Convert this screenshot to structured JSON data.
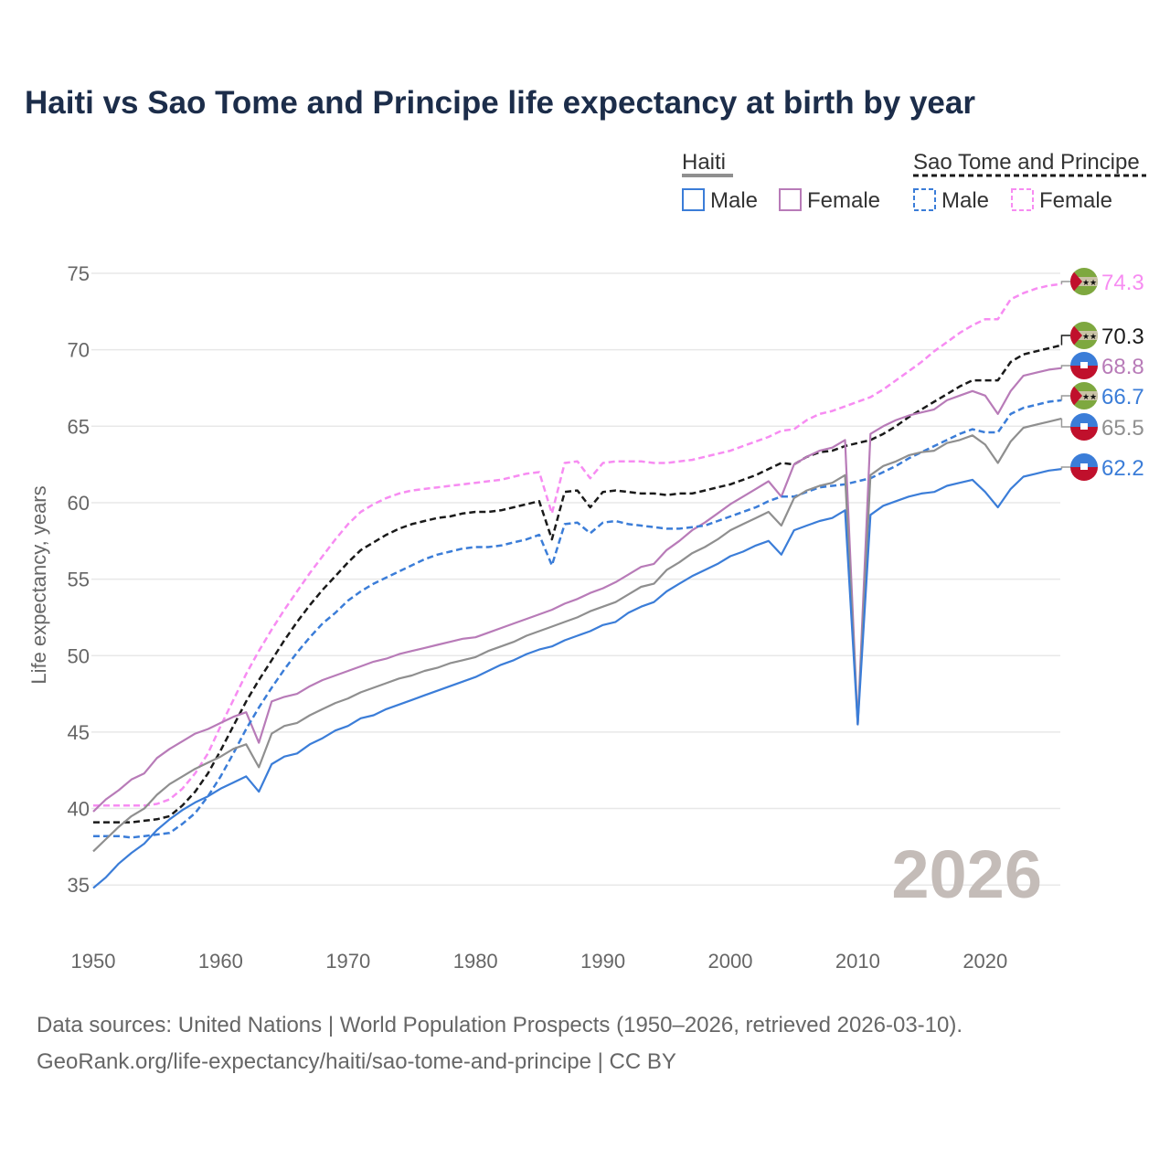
{
  "chart_data": {
    "type": "line",
    "title": "Haiti vs Sao Tome and Principe life expectancy at birth by year",
    "xlabel": "",
    "ylabel": "Life expectancy, years",
    "xlim": [
      1950,
      2026
    ],
    "ylim": [
      33,
      76
    ],
    "x_ticks": [
      "1950",
      "1960",
      "1970",
      "1980",
      "1990",
      "2000",
      "2010",
      "2020"
    ],
    "y_ticks": [
      "35",
      "40",
      "45",
      "50",
      "55",
      "60",
      "65",
      "70",
      "75"
    ],
    "grid": true,
    "current_year": "2026",
    "legend": {
      "groups": [
        {
          "name": "Haiti",
          "items": [
            "Male",
            "Female"
          ]
        },
        {
          "name": "Sao Tome and Principe",
          "items": [
            "Male",
            "Female"
          ]
        }
      ],
      "placement": "top-right"
    },
    "start_year": 1950,
    "series": [
      {
        "name": "Sao Tome and Principe Female",
        "color": "#f78cf2",
        "dashed": true,
        "end_label": "74.3",
        "flag": "sao-tome",
        "values": [
          40.2,
          40.2,
          40.2,
          40.2,
          40.2,
          40.3,
          40.6,
          41.3,
          42.3,
          43.6,
          45.4,
          47.1,
          48.8,
          50.3,
          51.7,
          53.0,
          54.2,
          55.4,
          56.5,
          57.6,
          58.6,
          59.4,
          59.9,
          60.3,
          60.6,
          60.8,
          60.9,
          61.0,
          61.1,
          61.2,
          61.3,
          61.4,
          61.5,
          61.7,
          61.9,
          62.0,
          59.3,
          62.6,
          62.7,
          61.6,
          62.6,
          62.7,
          62.7,
          62.7,
          62.6,
          62.6,
          62.7,
          62.8,
          63.0,
          63.2,
          63.4,
          63.7,
          64.0,
          64.3,
          64.7,
          64.8,
          65.4,
          65.8,
          66.0,
          66.3,
          66.6,
          66.9,
          67.4,
          68.0,
          68.6,
          69.2,
          69.9,
          70.5,
          71.1,
          71.6,
          72.0,
          72.0,
          73.3,
          73.7,
          74.0,
          74.2,
          74.3
        ]
      },
      {
        "name": "Sao Tome and Principe",
        "color": "#1a1a1a",
        "dashed": true,
        "end_label": "70.3",
        "flag": "sao-tome",
        "values": [
          39.1,
          39.1,
          39.1,
          39.1,
          39.2,
          39.3,
          39.5,
          40.2,
          41.1,
          42.3,
          43.8,
          45.4,
          47.0,
          48.4,
          49.7,
          51.0,
          52.2,
          53.3,
          54.3,
          55.2,
          56.1,
          56.9,
          57.4,
          57.9,
          58.3,
          58.6,
          58.8,
          59.0,
          59.1,
          59.3,
          59.4,
          59.4,
          59.5,
          59.7,
          59.9,
          60.1,
          57.6,
          60.7,
          60.8,
          59.7,
          60.7,
          60.8,
          60.7,
          60.6,
          60.6,
          60.5,
          60.6,
          60.6,
          60.8,
          61.0,
          61.2,
          61.5,
          61.8,
          62.2,
          62.6,
          62.5,
          63.0,
          63.3,
          63.4,
          63.7,
          63.9,
          64.1,
          64.5,
          65.0,
          65.6,
          66.1,
          66.6,
          67.1,
          67.6,
          68.0,
          68.0,
          68.0,
          69.2,
          69.7,
          69.9,
          70.1,
          70.3
        ]
      },
      {
        "name": "Haiti Female",
        "color": "#b87bb8",
        "dashed": false,
        "end_label": "68.8",
        "flag": "haiti",
        "values": [
          39.8,
          40.6,
          41.2,
          41.9,
          42.3,
          43.3,
          43.9,
          44.4,
          44.9,
          45.2,
          45.6,
          46.0,
          46.3,
          44.3,
          47.0,
          47.3,
          47.5,
          48.0,
          48.4,
          48.7,
          49.0,
          49.3,
          49.6,
          49.8,
          50.1,
          50.3,
          50.5,
          50.7,
          50.9,
          51.1,
          51.2,
          51.5,
          51.8,
          52.1,
          52.4,
          52.7,
          53.0,
          53.4,
          53.7,
          54.1,
          54.4,
          54.8,
          55.3,
          55.8,
          56.0,
          56.9,
          57.5,
          58.2,
          58.7,
          59.3,
          59.9,
          60.4,
          60.9,
          61.4,
          60.4,
          62.5,
          63.0,
          63.4,
          63.6,
          64.1,
          45.5,
          64.5,
          65.0,
          65.4,
          65.7,
          65.9,
          66.1,
          66.7,
          67.0,
          67.3,
          67.0,
          65.8,
          67.3,
          68.3,
          68.5,
          68.7,
          68.8
        ]
      },
      {
        "name": "Sao Tome and Principe Male",
        "color": "#3b7dd8",
        "dashed": true,
        "end_label": "66.7",
        "flag": "sao-tome",
        "values": [
          38.2,
          38.2,
          38.2,
          38.1,
          38.2,
          38.3,
          38.4,
          39.0,
          39.7,
          40.8,
          42.1,
          43.6,
          45.2,
          46.6,
          47.9,
          49.1,
          50.2,
          51.2,
          52.1,
          52.8,
          53.6,
          54.2,
          54.7,
          55.1,
          55.5,
          55.9,
          56.3,
          56.6,
          56.8,
          57.0,
          57.1,
          57.1,
          57.2,
          57.4,
          57.6,
          57.9,
          55.9,
          58.6,
          58.7,
          58.0,
          58.7,
          58.8,
          58.6,
          58.5,
          58.4,
          58.3,
          58.3,
          58.4,
          58.5,
          58.8,
          59.1,
          59.4,
          59.7,
          60.1,
          60.4,
          60.4,
          60.7,
          61.0,
          61.1,
          61.2,
          61.4,
          61.6,
          62.0,
          62.4,
          62.9,
          63.3,
          63.7,
          64.1,
          64.5,
          64.8,
          64.6,
          64.6,
          65.8,
          66.2,
          66.4,
          66.6,
          66.7
        ]
      },
      {
        "name": "Haiti",
        "color": "#8f8f8f",
        "dashed": false,
        "end_label": "65.5",
        "flag": "haiti",
        "values": [
          37.2,
          38.0,
          38.8,
          39.5,
          40.0,
          40.9,
          41.6,
          42.1,
          42.6,
          43.0,
          43.4,
          43.9,
          44.2,
          42.7,
          44.9,
          45.4,
          45.6,
          46.1,
          46.5,
          46.9,
          47.2,
          47.6,
          47.9,
          48.2,
          48.5,
          48.7,
          49.0,
          49.2,
          49.5,
          49.7,
          49.9,
          50.3,
          50.6,
          50.9,
          51.3,
          51.6,
          51.9,
          52.2,
          52.5,
          52.9,
          53.2,
          53.5,
          54.0,
          54.5,
          54.7,
          55.6,
          56.1,
          56.7,
          57.1,
          57.6,
          58.2,
          58.6,
          59.0,
          59.4,
          58.5,
          60.3,
          60.8,
          61.1,
          61.3,
          61.8,
          45.5,
          61.8,
          62.4,
          62.7,
          63.1,
          63.3,
          63.4,
          63.9,
          64.1,
          64.4,
          63.8,
          62.6,
          64.0,
          64.9,
          65.1,
          65.3,
          65.5
        ]
      },
      {
        "name": "Haiti Male",
        "color": "#3b7dd8",
        "dashed": false,
        "end_label": "62.2",
        "flag": "haiti",
        "values": [
          34.8,
          35.5,
          36.4,
          37.1,
          37.7,
          38.6,
          39.3,
          39.9,
          40.4,
          40.8,
          41.3,
          41.7,
          42.1,
          41.1,
          42.9,
          43.4,
          43.6,
          44.2,
          44.6,
          45.1,
          45.4,
          45.9,
          46.1,
          46.5,
          46.8,
          47.1,
          47.4,
          47.7,
          48.0,
          48.3,
          48.6,
          49.0,
          49.4,
          49.7,
          50.1,
          50.4,
          50.6,
          51.0,
          51.3,
          51.6,
          52.0,
          52.2,
          52.8,
          53.2,
          53.5,
          54.2,
          54.7,
          55.2,
          55.6,
          56.0,
          56.5,
          56.8,
          57.2,
          57.5,
          56.6,
          58.2,
          58.5,
          58.8,
          59.0,
          59.5,
          45.5,
          59.2,
          59.8,
          60.1,
          60.4,
          60.6,
          60.7,
          61.1,
          61.3,
          61.5,
          60.7,
          59.7,
          60.9,
          61.7,
          61.9,
          62.1,
          62.2
        ]
      }
    ]
  },
  "footer": {
    "line1": "Data sources: United Nations | World Population Prospects (1950–2026, retrieved 2026-03-10).",
    "line2": "GeoRank.org/life-expectancy/haiti/sao-tome-and-principe | CC BY"
  }
}
